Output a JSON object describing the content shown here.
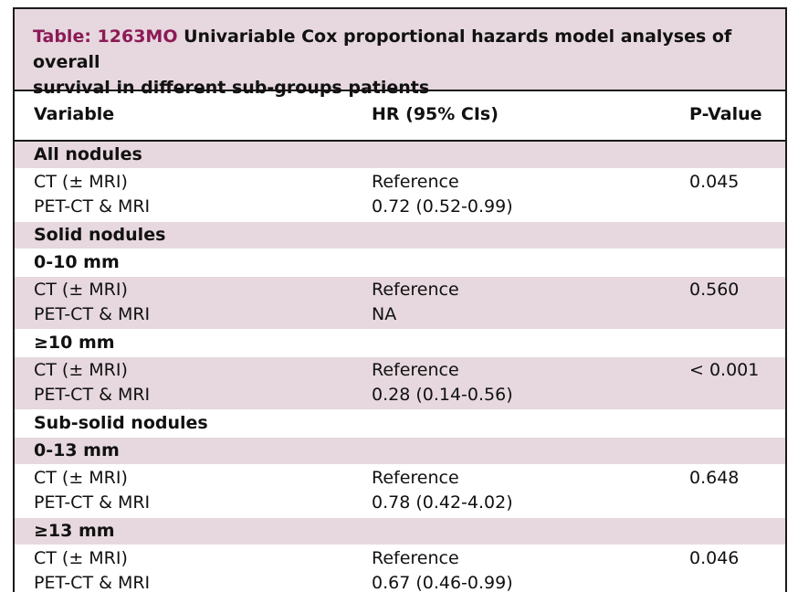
{
  "title": {
    "label": "Table: 1263MO",
    "text_line1": " Univariable Cox proportional hazards model analyses of overall",
    "text_line2": "survival in different sub-groups patients"
  },
  "columns": [
    "Variable",
    "HR (95% CIs)",
    "P-Value"
  ],
  "rows": [
    {
      "type": "section",
      "shade": true,
      "label": "All nodules"
    },
    {
      "type": "pair",
      "shade": false,
      "var1": "CT (± MRI)",
      "var2": "PET-CT & MRI",
      "hr1": "Reference",
      "hr2": "0.72 (0.52-0.99)",
      "p": "0.045"
    },
    {
      "type": "section",
      "shade": true,
      "label": "Solid nodules"
    },
    {
      "type": "section",
      "shade": false,
      "label": "0-10 mm"
    },
    {
      "type": "pair",
      "shade": true,
      "var1": "CT (± MRI)",
      "var2": "PET-CT & MRI",
      "hr1": "Reference",
      "hr2": "NA",
      "p": "0.560"
    },
    {
      "type": "section",
      "shade": false,
      "label": "≥10 mm"
    },
    {
      "type": "pair",
      "shade": true,
      "var1": "CT (± MRI)",
      "var2": "PET-CT & MRI",
      "hr1": "Reference",
      "hr2": "0.28 (0.14-0.56)",
      "p": "< 0.001"
    },
    {
      "type": "section",
      "shade": false,
      "label": "Sub-solid nodules"
    },
    {
      "type": "section",
      "shade": true,
      "label": "0-13 mm"
    },
    {
      "type": "pair",
      "shade": false,
      "var1": "CT (± MRI)",
      "var2": "PET-CT & MRI",
      "hr1": "Reference",
      "hr2": "0.78 (0.42-4.02)",
      "p": "0.648"
    },
    {
      "type": "section",
      "shade": true,
      "label": "≥13 mm"
    },
    {
      "type": "pair",
      "shade": false,
      "var1": "CT (± MRI)",
      "var2": "PET-CT & MRI",
      "hr1": "Reference",
      "hr2": "0.67 (0.46-0.99)",
      "p": "0.046"
    }
  ],
  "colors": {
    "band": "#e6d8de",
    "title_label": "#8c1a56",
    "border": "#1a1a1a"
  }
}
